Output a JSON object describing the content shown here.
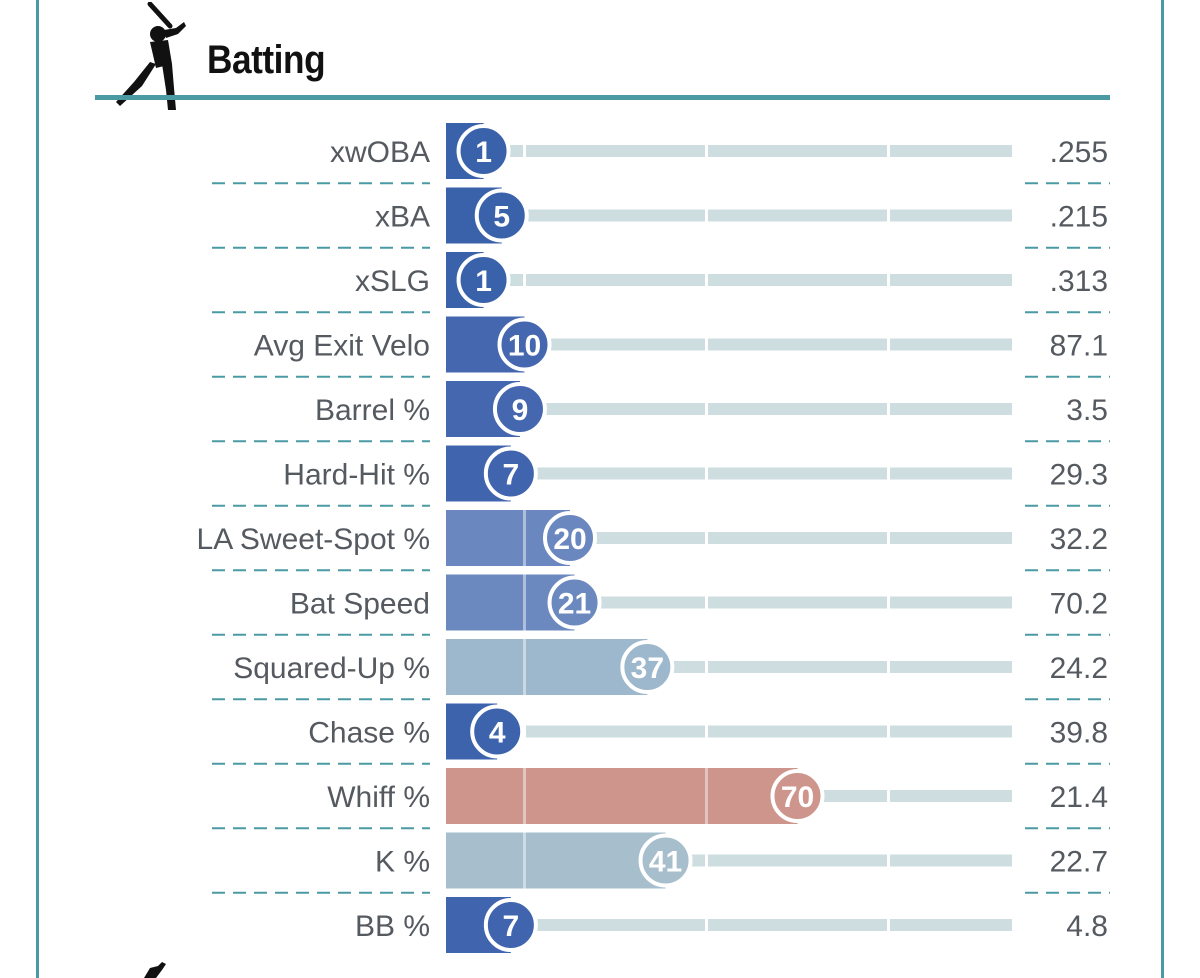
{
  "section": {
    "title": "Batting"
  },
  "colors": {
    "frame": "#4a9aa3",
    "track": "#cddde0",
    "label": "#555a60",
    "value": "#555a60",
    "good_strong": "#3a62ab",
    "good_medium": "#5d82bd",
    "good_light": "#9db8cc",
    "bad_light": "#cd958c"
  },
  "chart_data": {
    "type": "bar",
    "orientation": "horizontal",
    "title": "Batting",
    "xlim": [
      0,
      100
    ],
    "categories": [
      "xwOBA",
      "xBA",
      "xSLG",
      "Avg Exit Velo",
      "Barrel %",
      "Hard-Hit %",
      "LA Sweet-Spot %",
      "Bat Speed",
      "Squared-Up %",
      "Chase %",
      "Whiff %",
      "K %",
      "BB %"
    ],
    "percentiles": [
      1,
      5,
      1,
      10,
      9,
      7,
      20,
      21,
      37,
      4,
      70,
      41,
      7
    ],
    "values": [
      ".255",
      ".215",
      ".313",
      "87.1",
      "3.5",
      "29.3",
      "32.2",
      "70.2",
      "24.2",
      "39.8",
      "21.4",
      "22.7",
      "4.8"
    ],
    "bar_colors": [
      "#3a62ab",
      "#3a62ab",
      "#3a62ab",
      "#4467b0",
      "#4467b0",
      "#4064ad",
      "#6a88bf",
      "#6c89bf",
      "#9db8cc",
      "#3c63ac",
      "#cd958c",
      "#a7bfcc",
      "#4064ad"
    ]
  }
}
